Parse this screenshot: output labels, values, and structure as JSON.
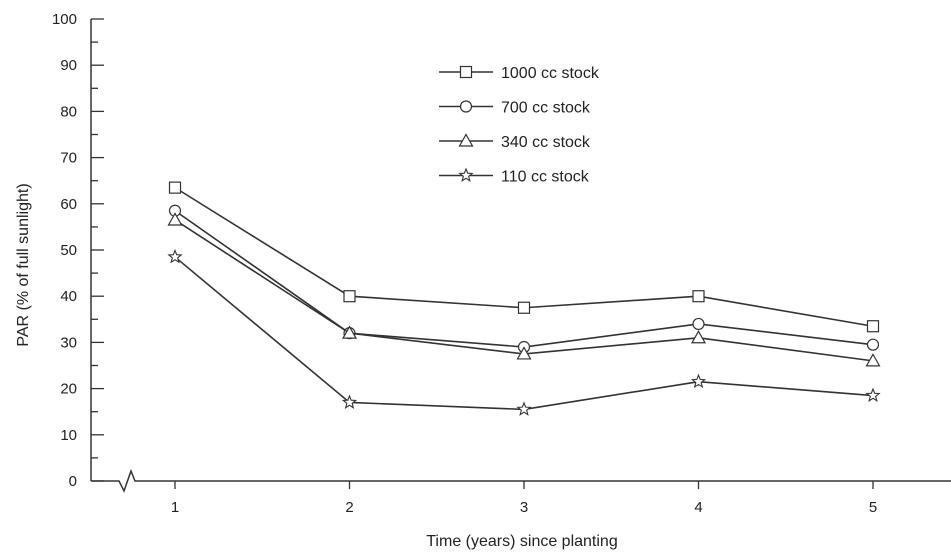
{
  "chart_data": {
    "type": "line",
    "title": "",
    "xlabel": "Time (years) since planting",
    "ylabel": "PAR (% of full sunlight)",
    "x": [
      1,
      2,
      3,
      4,
      5
    ],
    "x_tick_labels": [
      "1",
      "2",
      "3",
      "4",
      "5"
    ],
    "xlim": [
      0.35,
      5.4
    ],
    "x_axis_break": true,
    "ylim": [
      0,
      100
    ],
    "y_ticks": [
      0,
      10,
      20,
      30,
      40,
      50,
      60,
      70,
      80,
      90,
      100
    ],
    "y_tick_labels": [
      "0",
      "10",
      "20",
      "30",
      "40",
      "50",
      "60",
      "70",
      "80",
      "90",
      "100"
    ],
    "grid": false,
    "legend_position": "top-center",
    "series": [
      {
        "name": "1000 cc stock",
        "marker": "square",
        "values": [
          63.5,
          40,
          37.5,
          40,
          33.5
        ]
      },
      {
        "name": "700 cc stock",
        "marker": "circle",
        "values": [
          58.5,
          32,
          29,
          34,
          29.5
        ]
      },
      {
        "name": "340 cc stock",
        "marker": "triangle",
        "values": [
          56.5,
          32,
          27.5,
          31,
          26
        ]
      },
      {
        "name": "110 cc stock",
        "marker": "star",
        "values": [
          48.5,
          17,
          15.5,
          21.5,
          18.5
        ]
      }
    ],
    "colors": {
      "line": "#333333",
      "marker_fill": "#ffffff"
    }
  }
}
